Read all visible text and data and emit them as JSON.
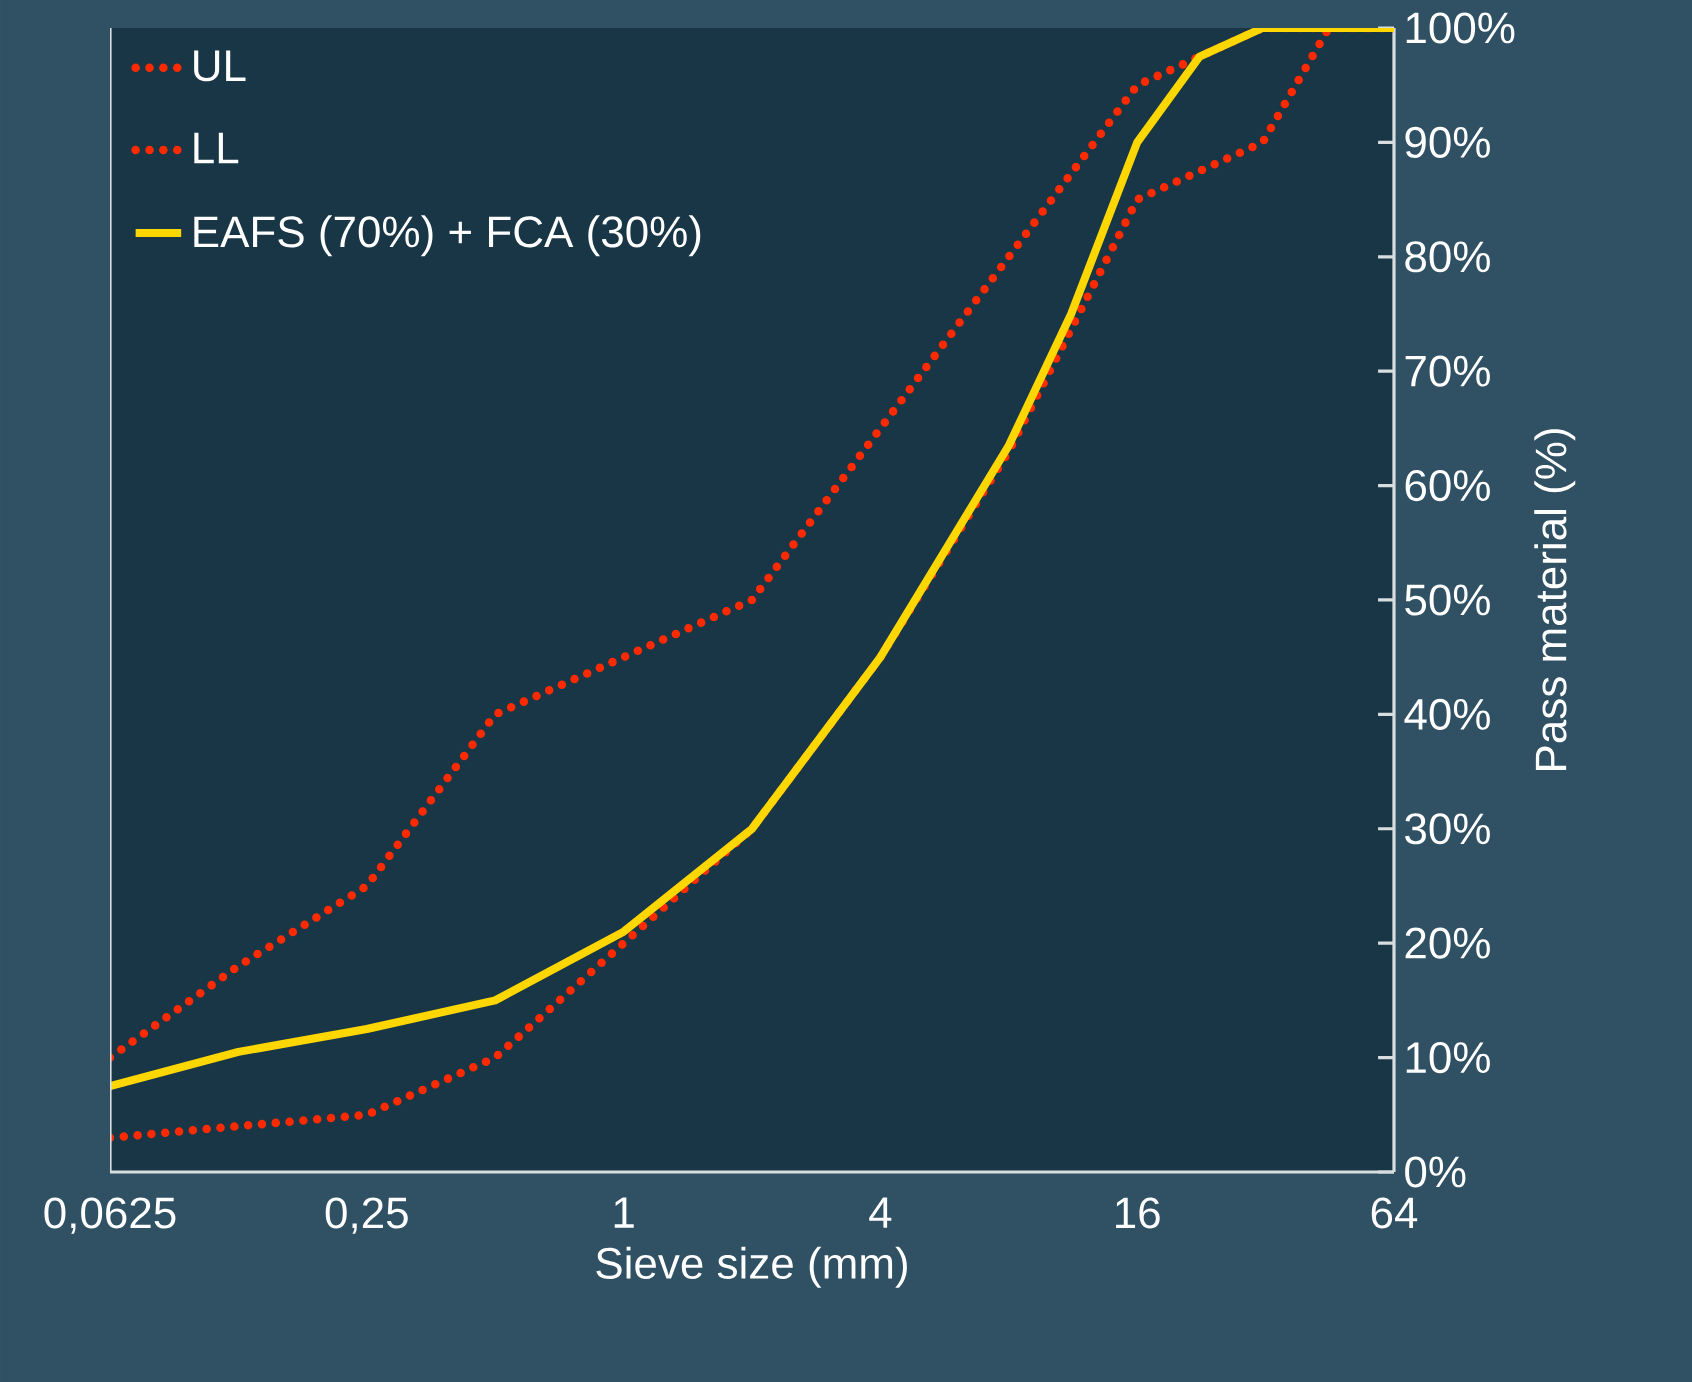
{
  "chart_data": {
    "type": "line",
    "xlabel": "Sieve size (mm)",
    "ylabel": "Pass material (%)",
    "log": "x",
    "xlim": [
      0.0625,
      64
    ],
    "ylim": [
      0,
      100
    ],
    "xticks": [
      {
        "value": 0.0625,
        "label": "0,0625"
      },
      {
        "value": 0.25,
        "label": "0,25"
      },
      1,
      4,
      16,
      64
    ],
    "yticks": [
      {
        "value": 0,
        "label": "0%"
      },
      {
        "value": 10,
        "label": "10%"
      },
      {
        "value": 20,
        "label": "20%"
      },
      {
        "value": 30,
        "label": "30%"
      },
      {
        "value": 40,
        "label": "40%"
      },
      {
        "value": 50,
        "label": "50%"
      },
      {
        "value": 60,
        "label": "60%"
      },
      {
        "value": 70,
        "label": "70%"
      },
      {
        "value": 80,
        "label": "80%"
      },
      {
        "value": 90,
        "label": "90%"
      },
      {
        "value": 100,
        "label": "100%"
      }
    ],
    "legend": "top left",
    "marker": "none",
    "series": [
      {
        "name": "UL",
        "color": "#ff2a00",
        "line_style": "dotted",
        "x": [
          0.0625,
          0.125,
          0.25,
          0.5,
          1,
          2,
          4,
          8,
          16,
          31.5,
          64
        ],
        "values": [
          10,
          18,
          25,
          40,
          45,
          50,
          65,
          80,
          95,
          100,
          100
        ]
      },
      {
        "name": "LL",
        "color": "#ff2a00",
        "line_style": "dotted",
        "x": [
          0.0625,
          0.125,
          0.25,
          0.5,
          1,
          2,
          4,
          8,
          16,
          31.5,
          45,
          64
        ],
        "values": [
          3,
          4,
          5,
          10,
          20,
          30,
          45,
          63,
          85,
          90,
          100,
          100
        ]
      },
      {
        "name": "EAFS (70%) + FCA (30%)",
        "color": "#ffd700",
        "line_style": "solid",
        "x": [
          0.0625,
          0.125,
          0.25,
          0.5,
          1,
          2,
          4,
          8,
          11.2,
          16,
          22.4,
          31.5,
          64
        ],
        "values": [
          7.5,
          10.5,
          12.5,
          15,
          21,
          30,
          45,
          63.5,
          75,
          90,
          97.5,
          100,
          100
        ]
      }
    ]
  }
}
